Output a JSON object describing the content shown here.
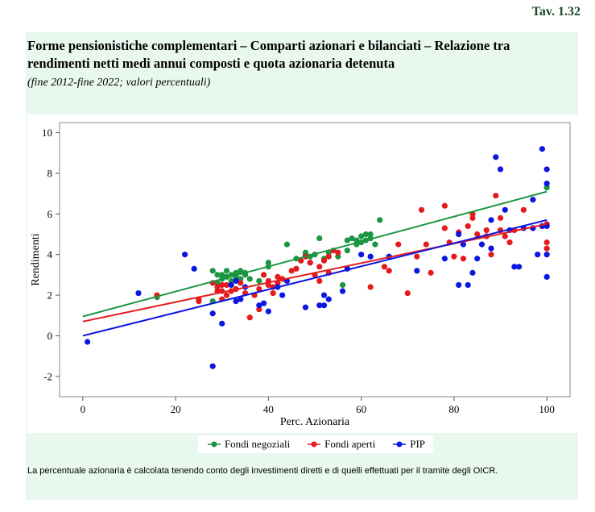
{
  "header": {
    "tav": "Tav. 1.32"
  },
  "title": "Forme pensionistiche complementari – Comparti azionari e bilanciati – Relazione tra rendimenti netti medi annui composti e quota azionaria detenuta",
  "subtitle": "(fine 2012-fine 2022; valori percentuali)",
  "note": "La percentuale azionaria è calcolata tenendo conto degli investimenti diretti e di quelli effettuati per il tramite degli OICR.",
  "chart_data": {
    "type": "scatter",
    "xlabel": "Perc. Azionaria",
    "ylabel": "Rendimenti",
    "xlim": [
      -5,
      105
    ],
    "ylim": [
      -3,
      10.5
    ],
    "xticks": [
      0,
      20,
      40,
      60,
      80,
      100
    ],
    "yticks": [
      -2,
      0,
      2,
      4,
      6,
      8,
      10
    ],
    "grid": false,
    "legend_position": "bottom",
    "series": [
      {
        "name": "Fondi negoziali",
        "color": "#1a9641",
        "trend": [
          [
            0,
            0.95
          ],
          [
            100,
            7.1
          ]
        ],
        "points": [
          [
            16,
            1.9
          ],
          [
            28,
            3.2
          ],
          [
            28,
            1.7
          ],
          [
            29,
            3.0
          ],
          [
            29,
            2.6
          ],
          [
            30,
            2.8
          ],
          [
            30,
            3.0
          ],
          [
            31,
            2.9
          ],
          [
            31,
            3.2
          ],
          [
            32,
            3.0
          ],
          [
            32,
            2.7
          ],
          [
            33,
            3.1
          ],
          [
            33,
            2.9
          ],
          [
            34,
            2.8
          ],
          [
            34,
            3.2
          ],
          [
            35,
            3.0
          ],
          [
            35,
            3.1
          ],
          [
            36,
            2.8
          ],
          [
            38,
            2.7
          ],
          [
            39,
            3.0
          ],
          [
            40,
            3.6
          ],
          [
            40,
            3.4
          ],
          [
            44,
            4.5
          ],
          [
            46,
            3.8
          ],
          [
            47,
            3.7
          ],
          [
            48,
            4.0
          ],
          [
            48,
            4.1
          ],
          [
            49,
            3.9
          ],
          [
            49,
            3.6
          ],
          [
            50,
            4.0
          ],
          [
            51,
            4.8
          ],
          [
            52,
            3.8
          ],
          [
            53,
            4.1
          ],
          [
            55,
            3.9
          ],
          [
            56,
            2.5
          ],
          [
            57,
            4.7
          ],
          [
            57,
            4.2
          ],
          [
            58,
            4.8
          ],
          [
            59,
            4.7
          ],
          [
            59,
            4.5
          ],
          [
            60,
            4.9
          ],
          [
            60,
            4.6
          ],
          [
            61,
            5.0
          ],
          [
            61,
            4.7
          ],
          [
            62,
            4.8
          ],
          [
            62,
            5.0
          ],
          [
            63,
            4.5
          ],
          [
            64,
            5.7
          ],
          [
            100,
            7.3
          ]
        ]
      },
      {
        "name": "Fondi aperti",
        "color": "#e41a1c",
        "trend": [
          [
            0,
            0.7
          ],
          [
            100,
            5.5
          ]
        ],
        "points": [
          [
            16,
            2.0
          ],
          [
            25,
            1.7
          ],
          [
            25,
            1.8
          ],
          [
            28,
            2.6
          ],
          [
            29,
            2.4
          ],
          [
            29,
            2.2
          ],
          [
            30,
            2.5
          ],
          [
            30,
            2.2
          ],
          [
            30,
            1.8
          ],
          [
            31,
            2.0
          ],
          [
            31,
            2.5
          ],
          [
            32,
            2.2
          ],
          [
            33,
            2.3
          ],
          [
            34,
            2.6
          ],
          [
            35,
            2.1
          ],
          [
            36,
            0.9
          ],
          [
            37,
            2.0
          ],
          [
            38,
            2.3
          ],
          [
            38,
            1.3
          ],
          [
            39,
            3.0
          ],
          [
            40,
            2.7
          ],
          [
            40,
            2.5
          ],
          [
            41,
            2.4
          ],
          [
            41,
            2.1
          ],
          [
            42,
            2.9
          ],
          [
            42,
            2.6
          ],
          [
            43,
            2.8
          ],
          [
            45,
            3.2
          ],
          [
            46,
            3.3
          ],
          [
            47,
            3.7
          ],
          [
            48,
            3.9
          ],
          [
            49,
            3.6
          ],
          [
            50,
            3.0
          ],
          [
            51,
            3.4
          ],
          [
            51,
            2.7
          ],
          [
            52,
            3.7
          ],
          [
            53,
            3.9
          ],
          [
            53,
            3.1
          ],
          [
            54,
            4.2
          ],
          [
            55,
            4.1
          ],
          [
            62,
            2.4
          ],
          [
            65,
            3.4
          ],
          [
            66,
            3.2
          ],
          [
            68,
            4.5
          ],
          [
            70,
            2.1
          ],
          [
            72,
            3.9
          ],
          [
            73,
            6.2
          ],
          [
            74,
            4.5
          ],
          [
            75,
            3.1
          ],
          [
            78,
            6.4
          ],
          [
            78,
            5.3
          ],
          [
            79,
            4.6
          ],
          [
            80,
            3.9
          ],
          [
            81,
            5.1
          ],
          [
            82,
            3.8
          ],
          [
            83,
            5.4
          ],
          [
            84,
            5.8
          ],
          [
            84,
            6.0
          ],
          [
            85,
            5.0
          ],
          [
            87,
            5.2
          ],
          [
            87,
            4.9
          ],
          [
            88,
            4.0
          ],
          [
            89,
            6.9
          ],
          [
            90,
            5.8
          ],
          [
            90,
            5.2
          ],
          [
            91,
            4.9
          ],
          [
            92,
            4.6
          ],
          [
            93,
            5.2
          ],
          [
            95,
            6.2
          ],
          [
            97,
            5.3
          ],
          [
            99,
            5.4
          ],
          [
            100,
            5.5
          ],
          [
            100,
            4.6
          ],
          [
            100,
            4.3
          ]
        ]
      },
      {
        "name": "PIP",
        "color": "#0b16e0",
        "trend": [
          [
            0,
            0.0
          ],
          [
            100,
            5.7
          ]
        ],
        "points": [
          [
            1,
            -0.3
          ],
          [
            12,
            2.1
          ],
          [
            22,
            4.0
          ],
          [
            24,
            3.3
          ],
          [
            28,
            1.1
          ],
          [
            28,
            -1.5
          ],
          [
            30,
            0.6
          ],
          [
            32,
            2.5
          ],
          [
            33,
            2.7
          ],
          [
            33,
            1.7
          ],
          [
            34,
            1.8
          ],
          [
            35,
            2.4
          ],
          [
            38,
            1.5
          ],
          [
            39,
            1.6
          ],
          [
            40,
            1.2
          ],
          [
            42,
            2.4
          ],
          [
            43,
            2.0
          ],
          [
            44,
            2.7
          ],
          [
            48,
            1.4
          ],
          [
            51,
            1.5
          ],
          [
            52,
            2.0
          ],
          [
            52,
            1.5
          ],
          [
            53,
            1.8
          ],
          [
            56,
            2.2
          ],
          [
            57,
            3.3
          ],
          [
            60,
            4.0
          ],
          [
            62,
            3.9
          ],
          [
            66,
            3.9
          ],
          [
            72,
            3.2
          ],
          [
            78,
            3.8
          ],
          [
            81,
            2.5
          ],
          [
            81,
            5.0
          ],
          [
            82,
            4.5
          ],
          [
            83,
            2.5
          ],
          [
            84,
            3.1
          ],
          [
            85,
            3.8
          ],
          [
            86,
            4.5
          ],
          [
            88,
            4.3
          ],
          [
            88,
            5.7
          ],
          [
            89,
            8.8
          ],
          [
            90,
            8.2
          ],
          [
            91,
            6.2
          ],
          [
            92,
            5.2
          ],
          [
            93,
            3.4
          ],
          [
            94,
            3.4
          ],
          [
            95,
            5.3
          ],
          [
            97,
            5.3
          ],
          [
            97,
            6.7
          ],
          [
            98,
            4.0
          ],
          [
            99,
            5.4
          ],
          [
            99,
            9.2
          ],
          [
            100,
            8.2
          ],
          [
            100,
            7.5
          ],
          [
            100,
            5.4
          ],
          [
            100,
            4.0
          ],
          [
            100,
            2.9
          ]
        ]
      }
    ]
  }
}
